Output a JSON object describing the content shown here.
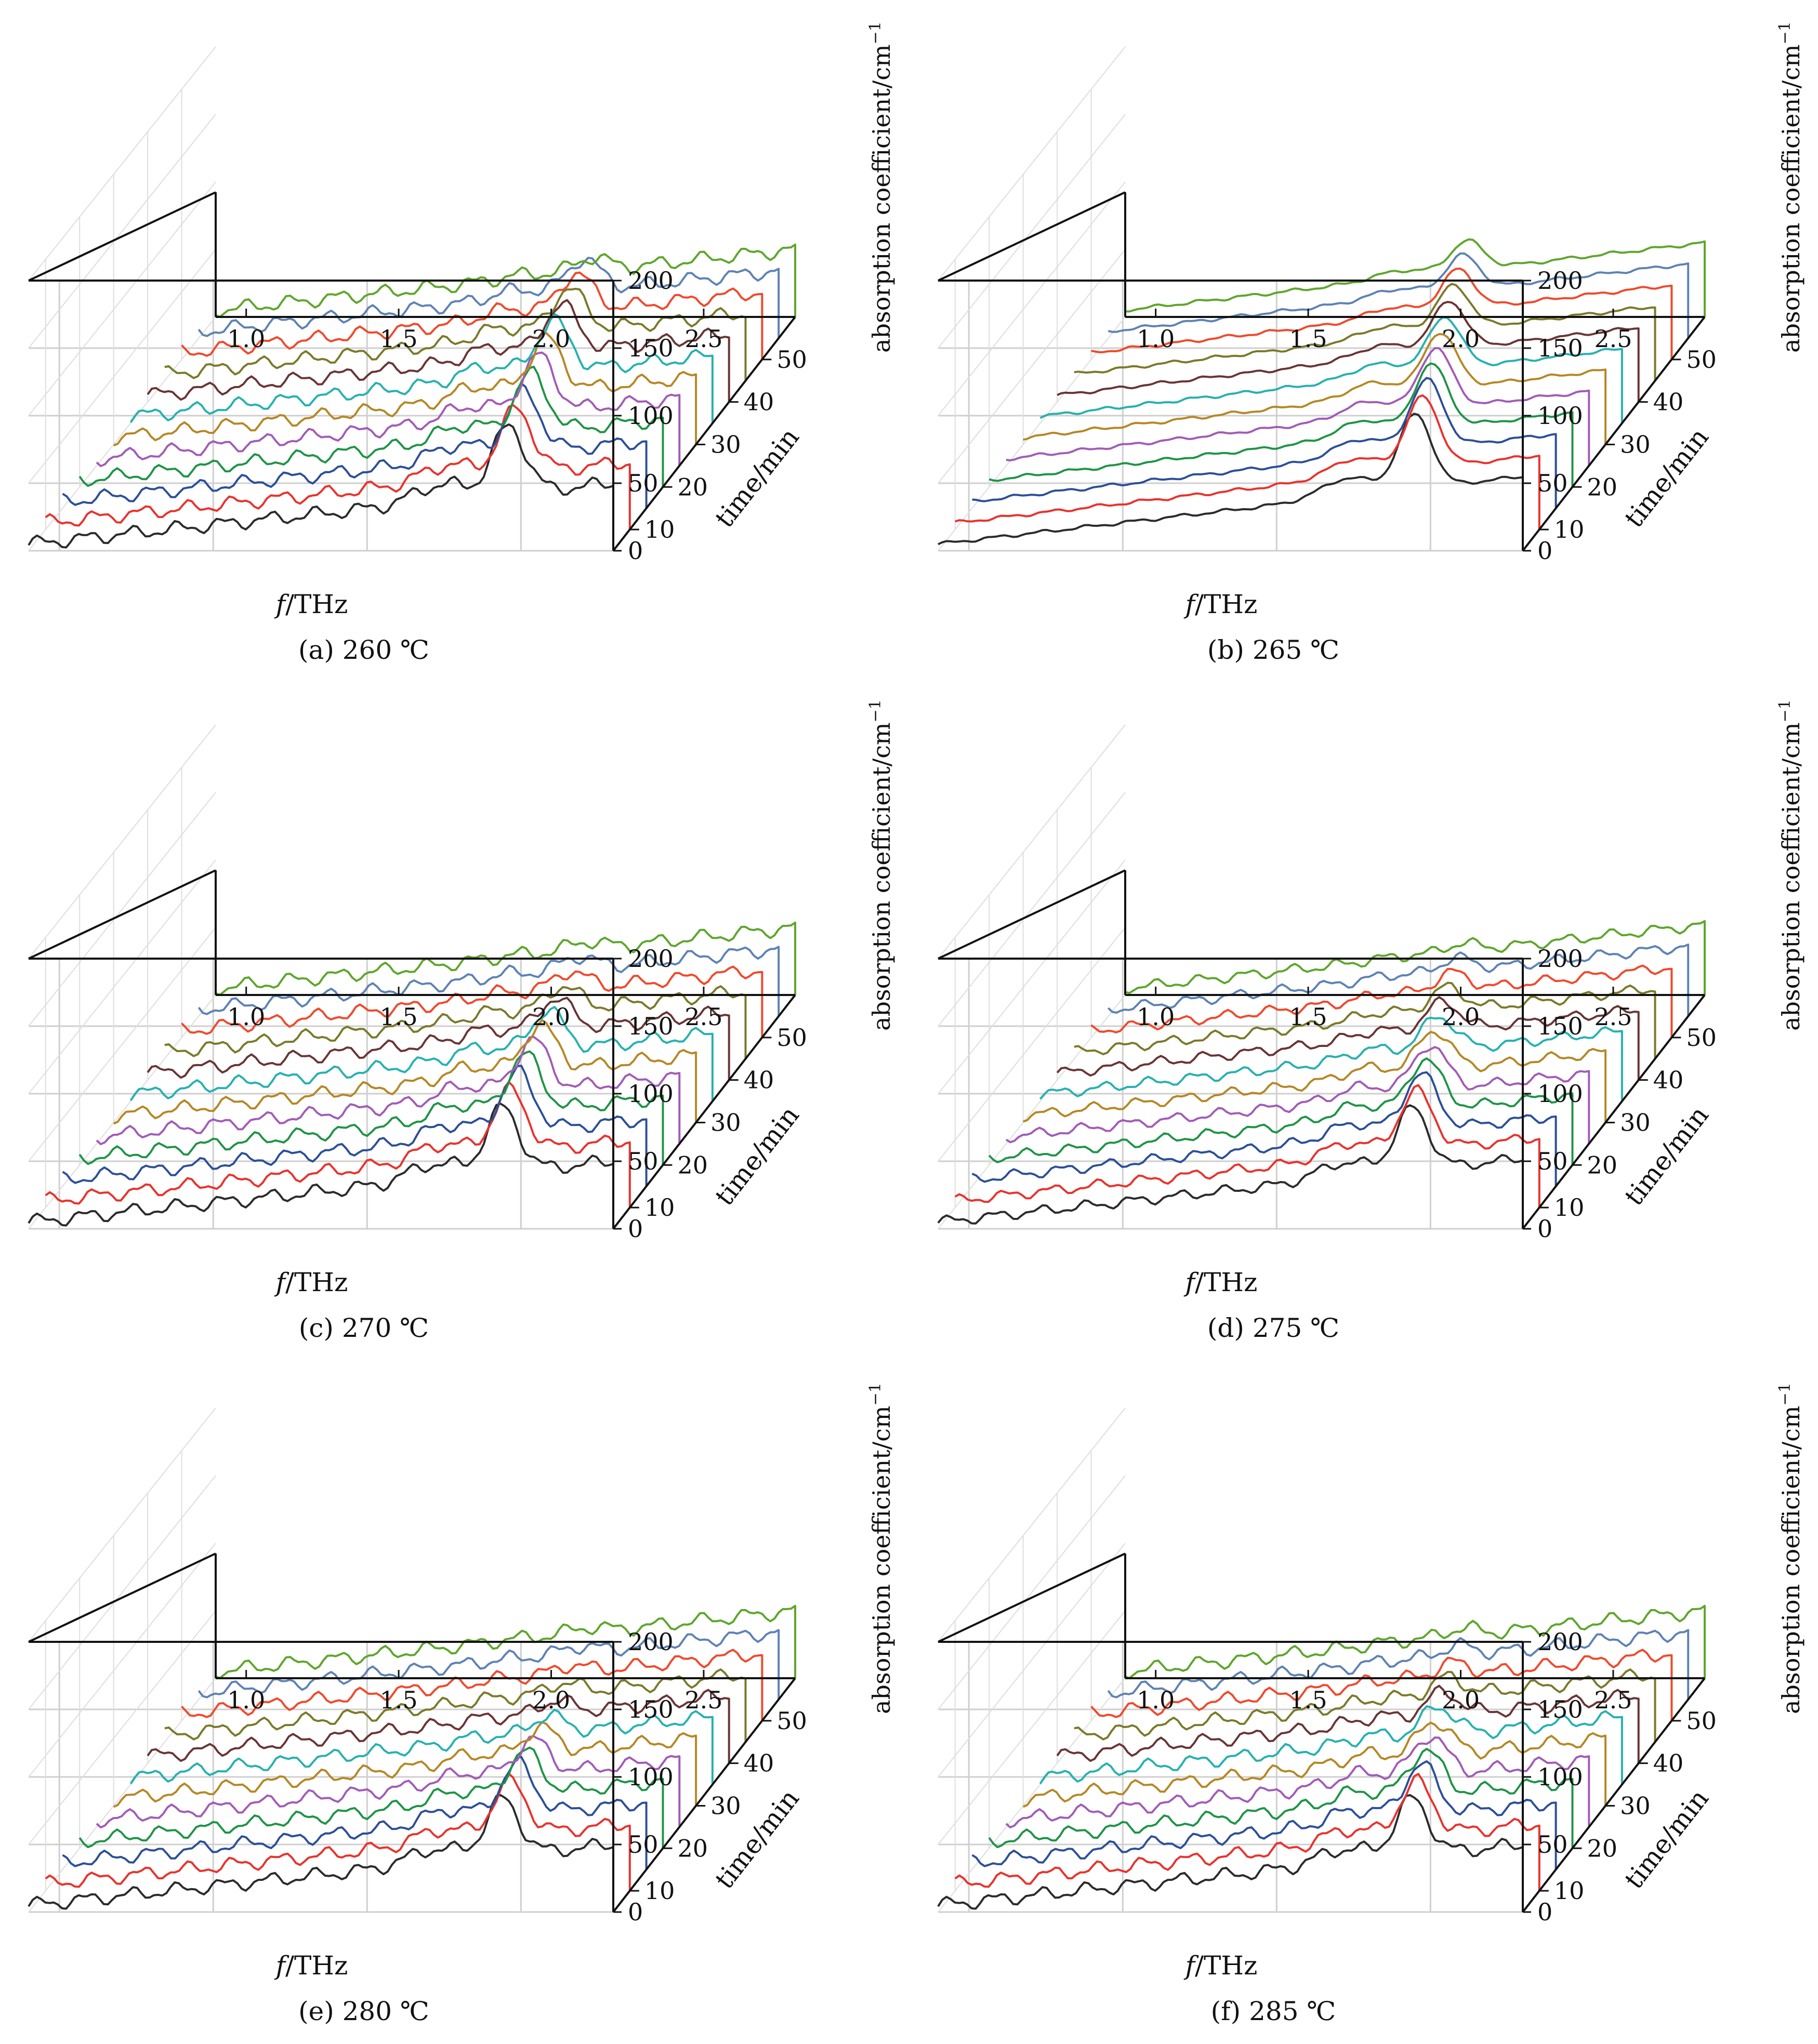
{
  "figure": {
    "x_axis_label_italic": "f",
    "x_axis_label_rest": "/THz",
    "y_axis_label": "time/min",
    "z_axis_label": "absorption coefficient/cm",
    "z_axis_label_superscript": "−1"
  },
  "series_colors": [
    "#2b2b2b",
    "#e8332e",
    "#2c4f98",
    "#1f9447",
    "#a25cb6",
    "#b58826",
    "#27b1b0",
    "#6a3434",
    "#7a7a2a",
    "#ef4a2d",
    "#5e82b4",
    "#5fa62c"
  ],
  "chart_data": [
    {
      "type": "line",
      "panel": "a",
      "caption": "(a) 260 ℃",
      "x_range": [
        0.9,
        2.8
      ],
      "y_range": [
        5,
        60
      ],
      "z_range": [
        0,
        200
      ],
      "x_ticks": [
        "1.0",
        "1.5",
        "2.0",
        "2.5"
      ],
      "y_ticks": [
        "10",
        "20",
        "30",
        "40",
        "50"
      ],
      "z_ticks": [
        "0",
        "50",
        "100",
        "150",
        "200"
      ],
      "time_min": [
        5,
        10,
        15,
        20,
        25,
        30,
        35,
        40,
        45,
        50,
        55,
        60
      ],
      "peak_THz": [
        2.46,
        2.43,
        2.4,
        2.37,
        2.34,
        2.31,
        2.28,
        2.25,
        2.22,
        2.19,
        2.16,
        2.13
      ],
      "peak_height": [
        50,
        48,
        46,
        44,
        42,
        40,
        38,
        35,
        32,
        28,
        24,
        10
      ],
      "baseline_start": 5,
      "baseline_end": 50,
      "wiggle": 4
    },
    {
      "type": "line",
      "panel": "b",
      "caption": "(b) 265 ℃",
      "x_range": [
        0.9,
        2.8
      ],
      "y_range": [
        5,
        60
      ],
      "z_range": [
        0,
        200
      ],
      "x_ticks": [
        "1.0",
        "1.5",
        "2.0",
        "2.5"
      ],
      "y_ticks": [
        "10",
        "20",
        "30",
        "40",
        "50"
      ],
      "z_ticks": [
        "0",
        "50",
        "100",
        "150",
        "200"
      ],
      "time_min": [
        5,
        10,
        15,
        20,
        25,
        30,
        35,
        40,
        45,
        50,
        55,
        60
      ],
      "peak_THz": [
        2.45,
        2.42,
        2.38,
        2.34,
        2.3,
        2.26,
        2.22,
        2.18,
        2.14,
        2.1,
        2.06,
        2.02
      ],
      "peak_height": [
        55,
        53,
        51,
        48,
        45,
        42,
        39,
        36,
        33,
        30,
        26,
        22
      ],
      "baseline_start": 5,
      "baseline_end": 55,
      "wiggle": 1
    },
    {
      "type": "line",
      "panel": "c",
      "caption": "(c) 270 ℃",
      "x_range": [
        0.9,
        2.8
      ],
      "y_range": [
        5,
        60
      ],
      "z_range": [
        0,
        200
      ],
      "x_ticks": [
        "1.0",
        "1.5",
        "2.0",
        "2.5"
      ],
      "y_ticks": [
        "10",
        "20",
        "30",
        "40",
        "50"
      ],
      "z_ticks": [
        "0",
        "50",
        "100",
        "150",
        "200"
      ],
      "time_min": [
        5,
        10,
        15,
        20,
        25,
        30,
        35,
        40,
        45,
        50,
        55,
        60
      ],
      "peak_THz": [
        2.44,
        2.41,
        2.38,
        2.35,
        2.32,
        2.29,
        2.26,
        2.23,
        2.2,
        2.17,
        2.14,
        2.11
      ],
      "peak_height": [
        48,
        46,
        44,
        42,
        38,
        34,
        30,
        24,
        18,
        14,
        10,
        6
      ],
      "baseline_start": 5,
      "baseline_end": 50,
      "wiggle": 4
    },
    {
      "type": "line",
      "panel": "d",
      "caption": "(d) 275 ℃",
      "x_range": [
        0.9,
        2.8
      ],
      "y_range": [
        5,
        60
      ],
      "z_range": [
        0,
        200
      ],
      "x_ticks": [
        "1.0",
        "1.5",
        "2.0",
        "2.5"
      ],
      "y_ticks": [
        "10",
        "20",
        "30",
        "40",
        "50"
      ],
      "z_ticks": [
        "0",
        "50",
        "100",
        "150",
        "200"
      ],
      "time_min": [
        5,
        10,
        15,
        20,
        25,
        30,
        35,
        40,
        45,
        50,
        55,
        60
      ],
      "peak_THz": [
        2.44,
        2.4,
        2.36,
        2.32,
        2.28,
        2.24,
        2.2,
        2.16,
        2.12,
        2.08,
        2.04,
        2.0
      ],
      "peak_height": [
        46,
        44,
        42,
        38,
        34,
        30,
        26,
        22,
        18,
        14,
        10,
        6
      ],
      "baseline_start": 5,
      "baseline_end": 52,
      "wiggle": 3
    },
    {
      "type": "line",
      "panel": "e",
      "caption": "(e) 280 ℃",
      "x_range": [
        0.9,
        2.8
      ],
      "y_range": [
        5,
        60
      ],
      "z_range": [
        0,
        200
      ],
      "x_ticks": [
        "1.0",
        "1.5",
        "2.0",
        "2.5"
      ],
      "y_ticks": [
        "10",
        "20",
        "30",
        "40",
        "50"
      ],
      "z_ticks": [
        "0",
        "50",
        "100",
        "150",
        "200"
      ],
      "time_min": [
        5,
        10,
        15,
        20,
        25,
        30,
        35,
        40,
        45,
        50,
        55,
        60
      ],
      "peak_THz": [
        2.44,
        2.41,
        2.38,
        2.35,
        2.32,
        2.29,
        2.26,
        2.23,
        2.2,
        2.17,
        2.14,
        2.11
      ],
      "peak_height": [
        42,
        40,
        38,
        32,
        26,
        20,
        14,
        10,
        8,
        6,
        5,
        4
      ],
      "baseline_start": 5,
      "baseline_end": 50,
      "wiggle": 4
    },
    {
      "type": "line",
      "panel": "f",
      "caption": "(f) 285 ℃",
      "x_range": [
        0.9,
        2.8
      ],
      "y_range": [
        5,
        60
      ],
      "z_range": [
        0,
        200
      ],
      "x_ticks": [
        "1.0",
        "1.5",
        "2.0",
        "2.5"
      ],
      "y_ticks": [
        "10",
        "20",
        "30",
        "40",
        "50"
      ],
      "z_ticks": [
        "0",
        "50",
        "100",
        "150",
        "200"
      ],
      "time_min": [
        5,
        10,
        15,
        20,
        25,
        30,
        35,
        40,
        45,
        50,
        55,
        60
      ],
      "peak_THz": [
        2.44,
        2.4,
        2.36,
        2.32,
        2.28,
        2.24,
        2.2,
        2.16,
        2.12,
        2.08,
        2.04,
        2.0
      ],
      "peak_height": [
        42,
        40,
        38,
        34,
        30,
        26,
        22,
        18,
        14,
        10,
        8,
        6
      ],
      "baseline_start": 5,
      "baseline_end": 50,
      "wiggle": 4
    }
  ]
}
